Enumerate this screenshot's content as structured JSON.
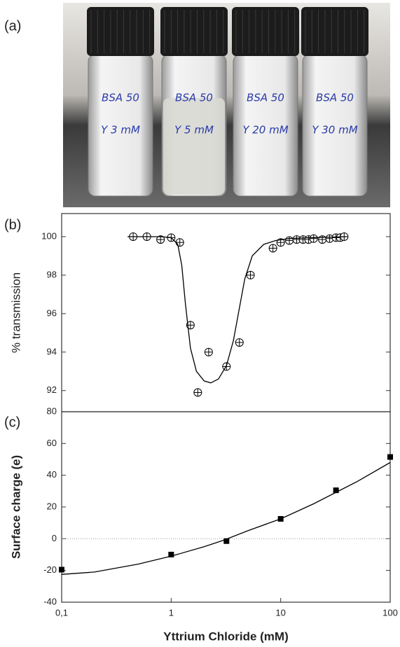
{
  "panel_labels": [
    "(a)",
    "(b)",
    "(c)"
  ],
  "photo": {
    "vials": [
      {
        "line1": "BSA 50",
        "line2": "Y 3 mM"
      },
      {
        "line1": "BSA 50",
        "line2": "Y 5 mM"
      },
      {
        "line1": "BSA 50",
        "line2": "Y 20 mM"
      },
      {
        "line1": "BSA 50",
        "line2": "Y 30 mM"
      }
    ]
  },
  "chart_data": [
    {
      "type": "scatter",
      "y_label": "% transmission",
      "xscale": "log",
      "xlim": [
        0.1,
        100
      ],
      "ylim": [
        90.9,
        101.2
      ],
      "yticks": [
        92,
        94,
        96,
        98,
        100
      ],
      "series": [
        {
          "style": "open-circle",
          "color": "#000",
          "x": [
            0.45,
            0.6,
            0.8,
            1.0,
            1.2,
            1.5,
            1.75,
            2.2,
            3.2,
            4.2,
            5.3,
            8.5,
            10,
            12,
            14,
            16,
            18,
            20,
            24,
            28,
            32,
            35,
            38
          ],
          "values": [
            100,
            100,
            99.85,
            99.95,
            99.7,
            95.4,
            91.9,
            94.0,
            93.25,
            94.5,
            98.0,
            99.4,
            99.7,
            99.8,
            99.85,
            99.85,
            99.85,
            99.9,
            99.85,
            99.9,
            99.95,
            99.95,
            100
          ]
        },
        {
          "style": "line",
          "color": "#000",
          "x": [
            0.4,
            0.8,
            1.0,
            1.15,
            1.25,
            1.35,
            1.5,
            1.7,
            2.0,
            2.3,
            2.7,
            3.2,
            3.7,
            4.2,
            4.7,
            5.5,
            7,
            9,
            12,
            20,
            40
          ],
          "values": [
            100,
            100,
            99.95,
            99.6,
            98.5,
            96.5,
            94.2,
            93.0,
            92.5,
            92.4,
            92.6,
            93.3,
            94.6,
            96.3,
            97.8,
            99.0,
            99.6,
            99.8,
            99.9,
            99.95,
            100
          ]
        }
      ]
    },
    {
      "type": "scatter",
      "x_label": "Yttrium Chloride (mM)",
      "y_label": "Surface charge (e)",
      "xscale": "log",
      "xlim": [
        0.1,
        100
      ],
      "ylim": [
        -40,
        80
      ],
      "xticks": [
        {
          "value": 0.1,
          "label": "0,1"
        },
        1,
        10,
        100
      ],
      "yticks": [
        -40,
        -20,
        0,
        20,
        40,
        60,
        80
      ],
      "reference_line": 0,
      "series": [
        {
          "style": "square",
          "color": "#000",
          "x": [
            0.1,
            1,
            3.2,
            10,
            32,
            100
          ],
          "values": [
            -19.5,
            -10,
            -1.5,
            12.5,
            30.5,
            51.5
          ]
        },
        {
          "style": "line",
          "color": "#000",
          "x": [
            0.1,
            0.2,
            0.5,
            1,
            2,
            3,
            5,
            10,
            20,
            50,
            100
          ],
          "values": [
            -22.5,
            -21,
            -16,
            -11,
            -5,
            -1,
            5,
            12.5,
            22,
            36,
            48
          ]
        }
      ]
    }
  ]
}
